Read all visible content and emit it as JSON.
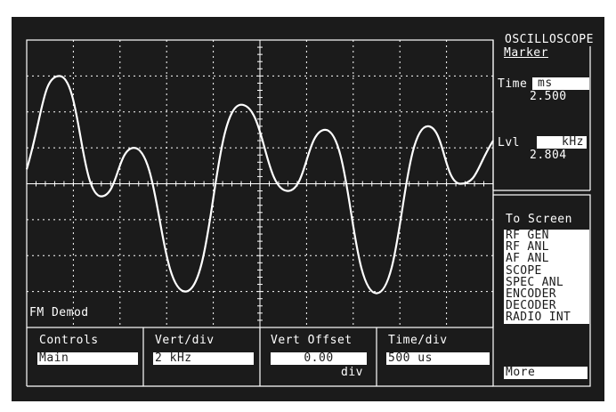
{
  "instrument": {
    "screen_title": "OSCILLOSCOPE",
    "graticule_label": "FM Demod"
  },
  "marker": {
    "title": "Marker",
    "time": {
      "label": "Time",
      "unit": "ms",
      "value": "2.500"
    },
    "level": {
      "label": "Lvl",
      "unit": "kHz",
      "value": "2.804"
    }
  },
  "to_screen": {
    "title": "To Screen",
    "items": [
      "RF GEN",
      "RF ANL",
      "AF ANL",
      "SCOPE",
      "SPEC ANL",
      "ENCODER",
      "DECODER",
      "RADIO INT"
    ],
    "more": "More"
  },
  "fields": {
    "controls": {
      "label": "Controls",
      "value": "Main"
    },
    "vert_div": {
      "label": "Vert/div",
      "value": "2 kHz"
    },
    "vert_offset": {
      "label": "Vert Offset",
      "value": "0.00",
      "unit": "div"
    },
    "time_div": {
      "label": "Time/div",
      "value": "500 us"
    }
  },
  "trace": {
    "description": "FM demodulated waveform",
    "color": "#ffffff",
    "time_per_div_us": 500,
    "volts_per_div_khz": 2,
    "peaks_khz": [
      6.9,
      2.5,
      -6.8,
      5.2,
      3.6,
      -7.3,
      4.0,
      2.8
    ]
  }
}
